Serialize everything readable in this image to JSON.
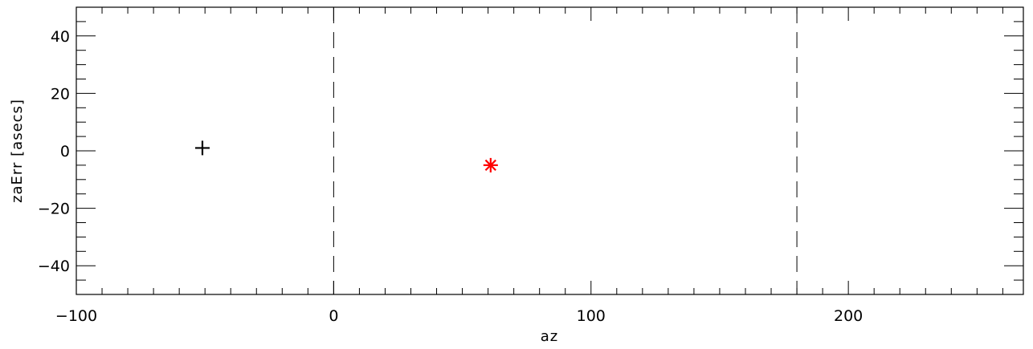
{
  "chart_data": {
    "type": "scatter",
    "title": "",
    "xlabel": "az",
    "ylabel": "zaErr [asecs]",
    "xlim": [
      -100,
      268
    ],
    "ylim": [
      -50,
      50
    ],
    "x_ticks": [
      -100,
      0,
      100,
      200
    ],
    "x_tick_labels": [
      "−100",
      "0",
      "100",
      "200"
    ],
    "y_ticks": [
      -40,
      -20,
      0,
      20,
      40
    ],
    "y_tick_labels": [
      "−40",
      "−20",
      "0",
      "20",
      "40"
    ],
    "x_minor_step": 10,
    "y_minor_step": 5,
    "grid": false,
    "vertical_reference_lines": [
      0,
      180
    ],
    "series": [
      {
        "marker": "plus",
        "color": "#000000",
        "points": [
          {
            "x": -51,
            "y": 1
          }
        ]
      },
      {
        "marker": "asterisk",
        "color": "#ff0000",
        "points": [
          {
            "x": 61,
            "y": -5
          }
        ]
      }
    ]
  }
}
